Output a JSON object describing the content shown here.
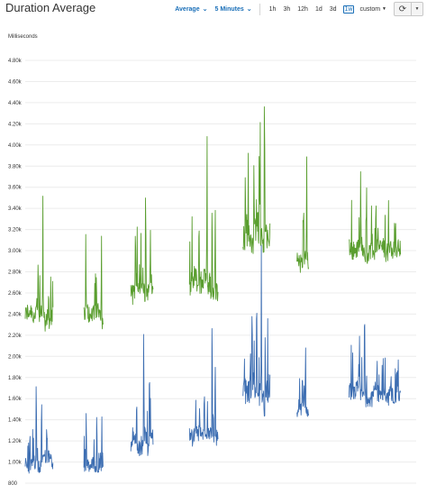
{
  "header": {
    "title": "Duration Average",
    "statistic": "Average",
    "period": "5 Minutes",
    "ranges": [
      "1h",
      "3h",
      "12h",
      "1d",
      "3d",
      "1w"
    ],
    "active_range": "1w",
    "custom_label": "custom"
  },
  "icons": {
    "refresh": "refresh-icon",
    "more": "caret-down-icon"
  },
  "chart_data": {
    "type": "line",
    "title": "Duration Average",
    "ylabel": "Milliseconds",
    "ylim": [
      800,
      4900
    ],
    "yticks": [
      "800",
      "1.00k",
      "1.20k",
      "1.40k",
      "1.60k",
      "1.80k",
      "2.00k",
      "2.20k",
      "2.40k",
      "2.60k",
      "2.80k",
      "3.00k",
      "3.20k",
      "3.40k",
      "3.60k",
      "3.80k",
      "4.00k",
      "4.20k",
      "4.40k",
      "4.60k",
      "4.80k"
    ],
    "ytick_values": [
      800,
      1000,
      1200,
      1400,
      1600,
      1800,
      2000,
      2200,
      2400,
      2600,
      2800,
      3000,
      3200,
      3400,
      3600,
      3800,
      4000,
      4200,
      4400,
      4600,
      4800
    ],
    "grid": true,
    "series": [
      {
        "color": "#5a9e2f",
        "segments": [
          {
            "x0": 0.0,
            "x1": 0.071,
            "base": 2380,
            "noise": 110,
            "spikes": [
              [
                0.045,
                3620
              ],
              [
                0.033,
                3050
              ],
              [
                0.06,
                2700
              ],
              [
                0.066,
                1480
              ]
            ]
          },
          {
            "x0": 0.15,
            "x1": 0.199,
            "base": 2390,
            "noise": 100,
            "spikes": [
              [
                0.155,
                3300
              ],
              [
                0.195,
                3260
              ],
              [
                0.182,
                2850
              ]
            ]
          },
          {
            "x0": 0.27,
            "x1": 0.327,
            "base": 2640,
            "noise": 120,
            "spikes": [
              [
                0.308,
                3810
              ],
              [
                0.282,
                3400
              ],
              [
                0.32,
                3350
              ],
              [
                0.296,
                3200
              ]
            ]
          },
          {
            "x0": 0.42,
            "x1": 0.493,
            "base": 2700,
            "noise": 140,
            "spikes": [
              [
                0.465,
                4280
              ],
              [
                0.478,
                3700
              ],
              [
                0.486,
                3620
              ],
              [
                0.445,
                3200
              ]
            ]
          },
          {
            "x0": 0.557,
            "x1": 0.626,
            "base": 3150,
            "noise": 190,
            "spikes": [
              [
                0.612,
                4880
              ],
              [
                0.601,
                4300
              ],
              [
                0.563,
                3850
              ],
              [
                0.585,
                4000
              ]
            ]
          },
          {
            "x0": 0.695,
            "x1": 0.725,
            "base": 2880,
            "noise": 110,
            "spikes": [
              [
                0.72,
                4030
              ],
              [
                0.712,
                3600
              ]
            ]
          },
          {
            "x0": 0.828,
            "x1": 0.96,
            "base": 3000,
            "noise": 110,
            "spikes": [
              [
                0.858,
                3850
              ],
              [
                0.873,
                3800
              ],
              [
                0.945,
                3400
              ],
              [
                0.897,
                3650
              ]
            ]
          }
        ]
      },
      {
        "color": "#3d6eb2",
        "segments": [
          {
            "x0": 0.0,
            "x1": 0.071,
            "base": 1010,
            "noise": 80,
            "spikes": [
              [
                0.028,
                1850
              ],
              [
                0.042,
                1600
              ],
              [
                0.055,
                1420
              ]
            ]
          },
          {
            "x0": 0.15,
            "x1": 0.199,
            "base": 960,
            "noise": 70,
            "spikes": [
              [
                0.156,
                1600
              ],
              [
                0.183,
                1640
              ],
              [
                0.196,
                1480
              ]
            ]
          },
          {
            "x0": 0.27,
            "x1": 0.327,
            "base": 1200,
            "noise": 110,
            "spikes": [
              [
                0.303,
                2350
              ],
              [
                0.318,
                1980
              ],
              [
                0.285,
                1700
              ]
            ]
          },
          {
            "x0": 0.42,
            "x1": 0.493,
            "base": 1250,
            "noise": 90,
            "spikes": [
              [
                0.478,
                2720
              ],
              [
                0.486,
                2100
              ],
              [
                0.458,
                1800
              ]
            ]
          },
          {
            "x0": 0.557,
            "x1": 0.626,
            "base": 1620,
            "noise": 160,
            "spikes": [
              [
                0.604,
                3100
              ],
              [
                0.592,
                2850
              ],
              [
                0.614,
                2200
              ]
            ]
          },
          {
            "x0": 0.695,
            "x1": 0.725,
            "base": 1500,
            "noise": 90,
            "spikes": [
              [
                0.717,
                2260
              ],
              [
                0.709,
                1900
              ]
            ]
          },
          {
            "x0": 0.828,
            "x1": 0.96,
            "base": 1640,
            "noise": 100,
            "spikes": [
              [
                0.868,
                2730
              ],
              [
                0.855,
                2200
              ],
              [
                0.9,
                2050
              ],
              [
                0.95,
                1980
              ]
            ]
          }
        ]
      }
    ]
  }
}
